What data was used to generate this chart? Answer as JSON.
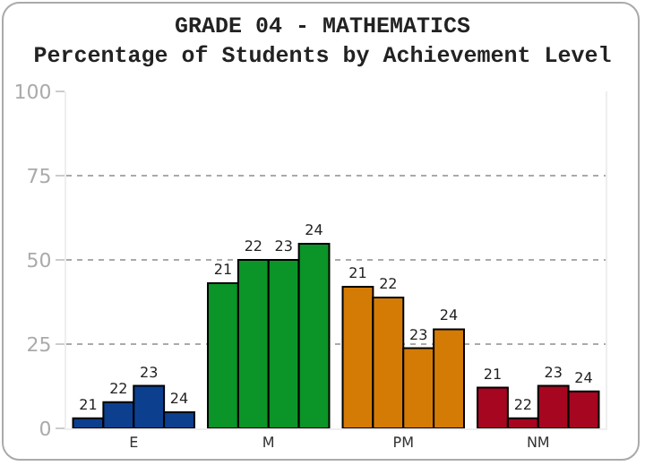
{
  "chart_data": {
    "type": "bar",
    "title": "GRADE 04 - MATHEMATICS",
    "subtitle": "Percentage of Students by Achievement Level",
    "categories": [
      "E",
      "M",
      "PM",
      "NM"
    ],
    "series": [
      {
        "name": "21",
        "colors": [
          "#0d3f8f",
          "#0b9427",
          "#d47b06",
          "#a6061f"
        ],
        "values": [
          3.0,
          43.1,
          42,
          12.1
        ]
      },
      {
        "name": "22",
        "colors": [
          "#0d3f8f",
          "#0b9427",
          "#d47b06",
          "#a6061f"
        ],
        "values": [
          7.8,
          50,
          38.8,
          3.0
        ]
      },
      {
        "name": "23",
        "colors": [
          "#0d3f8f",
          "#0b9427",
          "#d47b06",
          "#a6061f"
        ],
        "values": [
          12.6,
          50,
          23.8,
          12.6
        ]
      },
      {
        "name": "24",
        "colors": [
          "#0d3f8f",
          "#0b9427",
          "#d47b06",
          "#a6061f"
        ],
        "values": [
          4.8,
          54.8,
          29.4,
          11.0
        ]
      }
    ],
    "ylim": [
      0,
      100
    ],
    "yticks": [
      0,
      25,
      50,
      75,
      100
    ],
    "grid": "y",
    "line_style": "dotted",
    "legend": false
  }
}
